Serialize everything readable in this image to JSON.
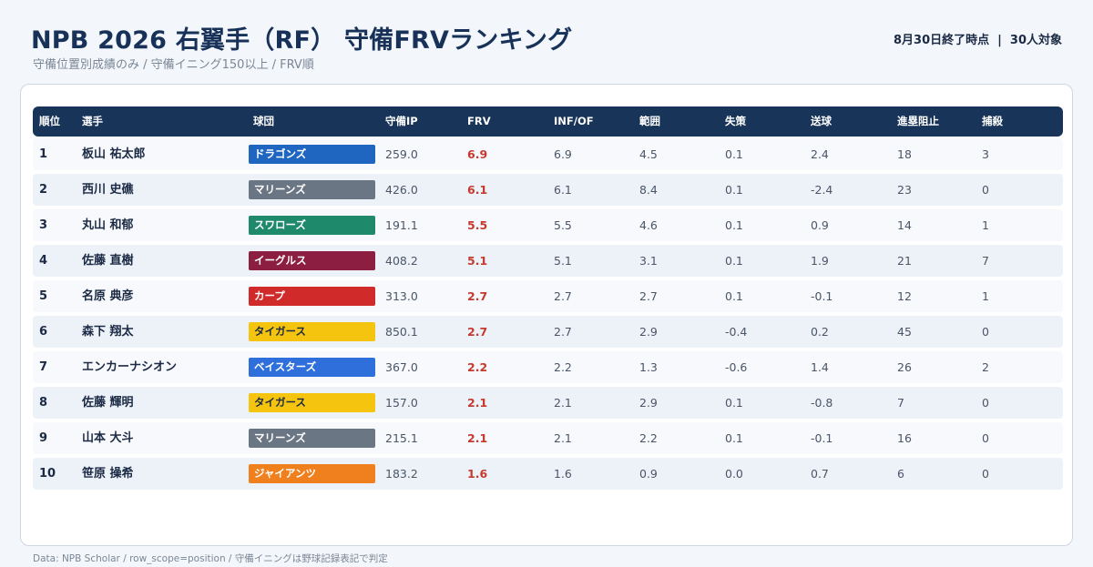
{
  "header": {
    "title": "NPB 2026 右翼手（RF） 守備FRVランキング",
    "subtitle": "守備位置別成績のみ / 守備イニング150以上 / FRV順",
    "as_of": "8月30日終了時点",
    "separator": "|",
    "count": "30人対象"
  },
  "table": {
    "columns": [
      "順位",
      "選手",
      "球団",
      "守備IP",
      "FRV",
      "INF/OF",
      "範囲",
      "失策",
      "送球",
      "進塁阻止",
      "捕殺"
    ],
    "rows": [
      {
        "rank": "1",
        "name": "板山 祐太郎",
        "team": "ドラゴンズ",
        "team_color": "#1f66c1",
        "dark_text": false,
        "ip": "259.0",
        "frv": "6.9",
        "infof": "6.9",
        "range": "4.5",
        "error": "0.1",
        "arm": "2.4",
        "advance": "18",
        "assist": "3"
      },
      {
        "rank": "2",
        "name": "西川 史礁",
        "team": "マリーンズ",
        "team_color": "#6b7685",
        "dark_text": false,
        "ip": "426.0",
        "frv": "6.1",
        "infof": "6.1",
        "range": "8.4",
        "error": "0.1",
        "arm": "-2.4",
        "advance": "23",
        "assist": "0"
      },
      {
        "rank": "3",
        "name": "丸山 和郁",
        "team": "スワローズ",
        "team_color": "#1f8a6b",
        "dark_text": false,
        "ip": "191.1",
        "frv": "5.5",
        "infof": "5.5",
        "range": "4.6",
        "error": "0.1",
        "arm": "0.9",
        "advance": "14",
        "assist": "1"
      },
      {
        "rank": "4",
        "name": "佐藤 直樹",
        "team": "イーグルス",
        "team_color": "#8c1e42",
        "dark_text": false,
        "ip": "408.2",
        "frv": "5.1",
        "infof": "5.1",
        "range": "3.1",
        "error": "0.1",
        "arm": "1.9",
        "advance": "21",
        "assist": "7"
      },
      {
        "rank": "5",
        "name": "名原 典彦",
        "team": "カープ",
        "team_color": "#d02a2a",
        "dark_text": false,
        "ip": "313.0",
        "frv": "2.7",
        "infof": "2.7",
        "range": "2.7",
        "error": "0.1",
        "arm": "-0.1",
        "advance": "12",
        "assist": "1"
      },
      {
        "rank": "6",
        "name": "森下 翔太",
        "team": "タイガース",
        "team_color": "#f4c40f",
        "dark_text": true,
        "ip": "850.1",
        "frv": "2.7",
        "infof": "2.7",
        "range": "2.9",
        "error": "-0.4",
        "arm": "0.2",
        "advance": "45",
        "assist": "0"
      },
      {
        "rank": "7",
        "name": "エンカーナシオン",
        "team": "ベイスターズ",
        "team_color": "#2f6fdb",
        "dark_text": false,
        "ip": "367.0",
        "frv": "2.2",
        "infof": "2.2",
        "range": "1.3",
        "error": "-0.6",
        "arm": "1.4",
        "advance": "26",
        "assist": "2"
      },
      {
        "rank": "8",
        "name": "佐藤 輝明",
        "team": "タイガース",
        "team_color": "#f4c40f",
        "dark_text": true,
        "ip": "157.0",
        "frv": "2.1",
        "infof": "2.1",
        "range": "2.9",
        "error": "0.1",
        "arm": "-0.8",
        "advance": "7",
        "assist": "0"
      },
      {
        "rank": "9",
        "name": "山本 大斗",
        "team": "マリーンズ",
        "team_color": "#6b7685",
        "dark_text": false,
        "ip": "215.1",
        "frv": "2.1",
        "infof": "2.1",
        "range": "2.2",
        "error": "0.1",
        "arm": "-0.1",
        "advance": "16",
        "assist": "0"
      },
      {
        "rank": "10",
        "name": "笹原 操希",
        "team": "ジャイアンツ",
        "team_color": "#f07f1e",
        "dark_text": false,
        "ip": "183.2",
        "frv": "1.6",
        "infof": "1.6",
        "range": "0.9",
        "error": "0.0",
        "arm": "0.7",
        "advance": "6",
        "assist": "0"
      }
    ]
  },
  "footer": "Data: NPB Scholar / row_scope=position / 守備イニングは野球記録表記で判定"
}
